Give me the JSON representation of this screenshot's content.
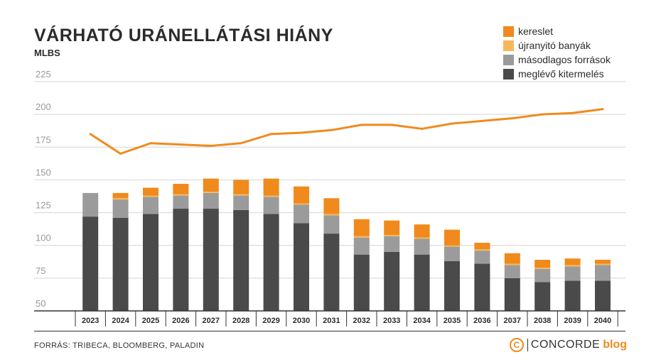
{
  "chart_data": {
    "type": "bar",
    "title": "VÁRHATÓ URÁNELLÁTÁSI HIÁNY",
    "unit": "MLBS",
    "ylim": [
      50,
      225
    ],
    "yticks": [
      50,
      75,
      100,
      125,
      150,
      175,
      200,
      225
    ],
    "categories": [
      "2023",
      "2024",
      "2025",
      "2026",
      "2027",
      "2028",
      "2029",
      "2030",
      "2031",
      "2032",
      "2033",
      "2034",
      "2035",
      "2036",
      "2037",
      "2038",
      "2039",
      "2040"
    ],
    "series": [
      {
        "name": "meglévő kitermelés",
        "kind": "stacked_bar",
        "color": "#4a4a4a",
        "values": [
          122,
          121,
          124,
          128,
          128,
          127,
          124,
          117,
          109,
          93,
          95,
          93,
          88,
          86,
          75,
          72,
          73,
          73
        ]
      },
      {
        "name": "másodlagos források",
        "kind": "stacked_bar",
        "color": "#9b9b9b",
        "values": [
          18,
          14,
          13,
          10,
          12,
          11,
          13,
          14,
          14,
          13,
          12,
          12,
          11,
          10,
          10,
          10,
          11,
          12
        ]
      },
      {
        "name": "újranyitó banyák",
        "kind": "stacked_bar",
        "color": "#f7b75a",
        "values": [
          0,
          1,
          1,
          1,
          1,
          1,
          1,
          1,
          1,
          1,
          1,
          1,
          1,
          1,
          1,
          1,
          1,
          1
        ]
      },
      {
        "name": "kereslet",
        "kind": "stacked_bar",
        "color": "#f08a1c",
        "values": [
          0,
          4,
          6,
          8,
          10,
          11,
          13,
          13,
          12,
          13,
          11,
          10,
          12,
          5,
          8,
          6,
          5,
          3
        ]
      },
      {
        "name": "kereslet",
        "kind": "line",
        "color": "#f08a1c",
        "values": [
          185,
          170,
          178,
          177,
          176,
          178,
          185,
          186,
          188,
          192,
          192,
          189,
          193,
          195,
          197,
          200,
          201,
          204
        ]
      }
    ],
    "legend": [
      {
        "label": "kereslet",
        "color": "#f08a1c"
      },
      {
        "label": "újranyitó banyák",
        "color": "#f7b75a"
      },
      {
        "label": "másodlagos források",
        "color": "#9b9b9b"
      },
      {
        "label": "meglévő kitermelés",
        "color": "#4a4a4a"
      }
    ],
    "legend_position": "top-right",
    "grid": true
  },
  "footer": {
    "source": "FORRÁS: TRIBECA, BLOOMBERG, PALADIN",
    "brand_symbol": "C",
    "brand_name": "CONCORDE",
    "brand_suffix": "blog"
  }
}
